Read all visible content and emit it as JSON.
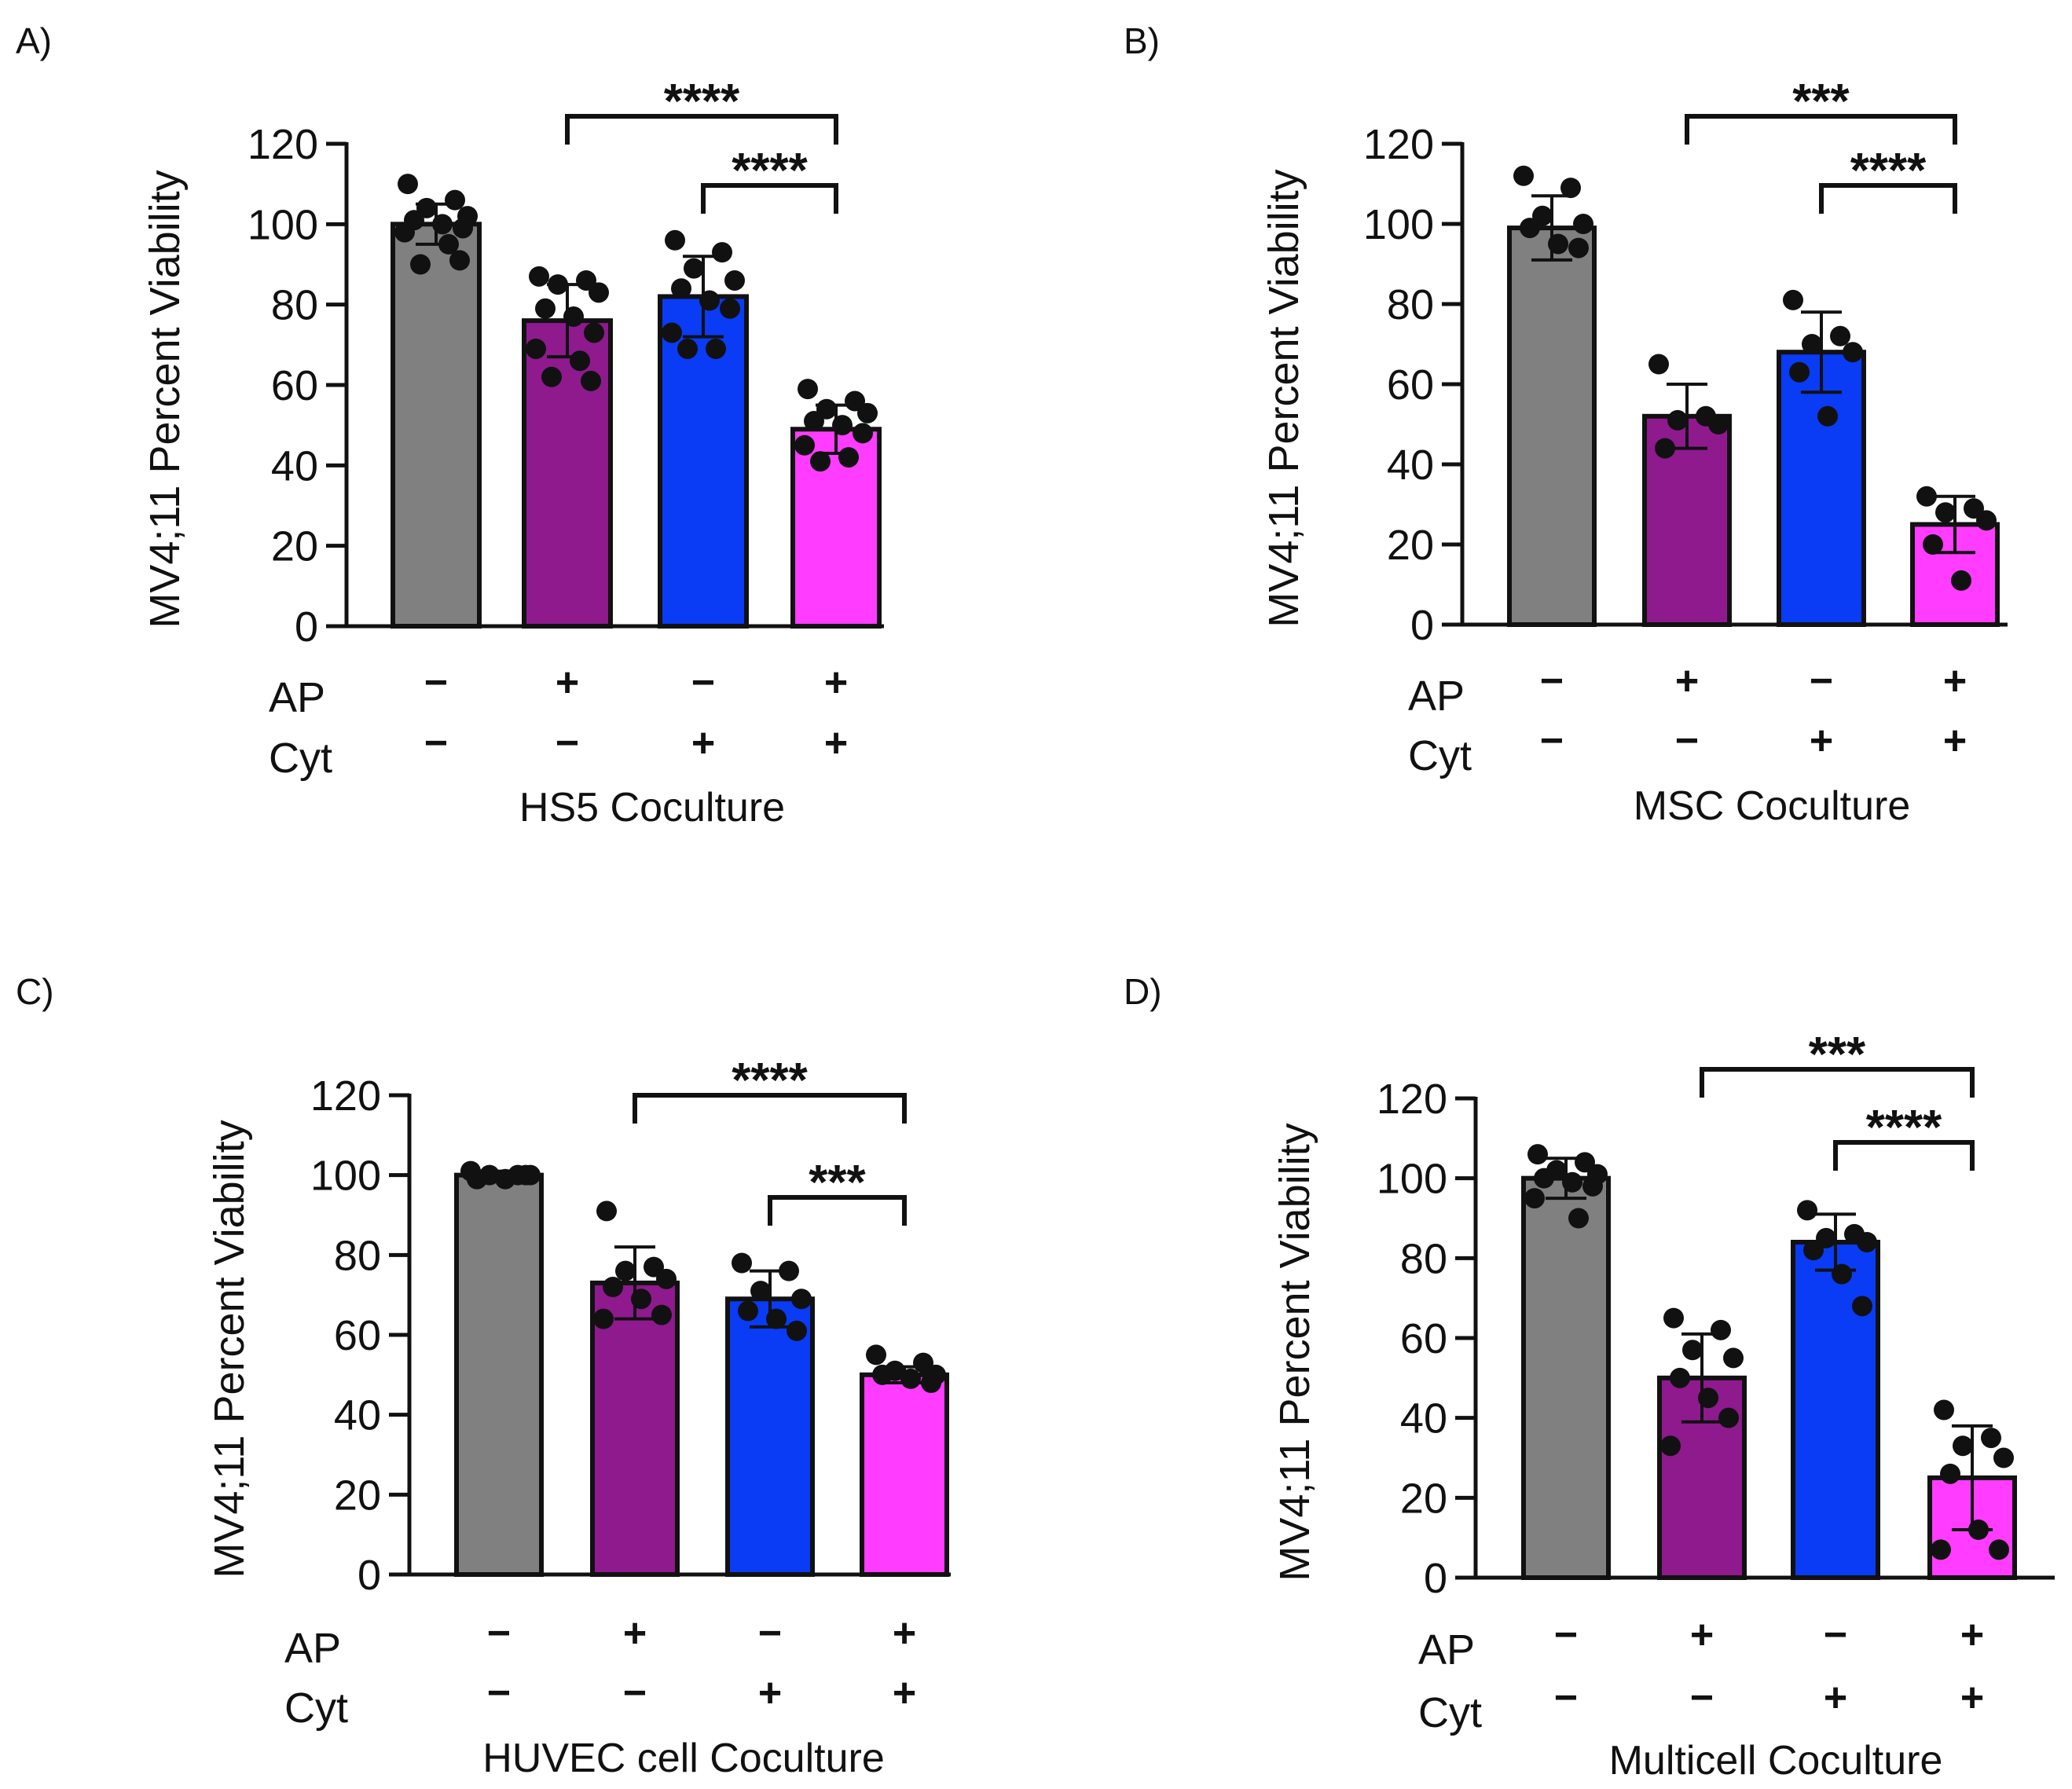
{
  "chart_data": [
    {
      "type": "bar",
      "panel": "A)",
      "xlabel": "HS5 Coculture",
      "ylabel": "MV4;11 Percent Viability",
      "ylim": [
        0,
        120
      ],
      "yticks": [
        "0",
        "20",
        "40",
        "60",
        "80",
        "100",
        "120"
      ],
      "row_labels": [
        "AP",
        "Cyt"
      ],
      "categories": [
        {
          "ap": "−",
          "cyt": "−",
          "color": "#808080",
          "value": 100,
          "sd": 5,
          "points": [
            110,
            106,
            104,
            102,
            101,
            100,
            99,
            98,
            95,
            90,
            91
          ]
        },
        {
          "ap": "+",
          "cyt": "−",
          "color": "#8e1a8e",
          "value": 76,
          "sd": 9,
          "points": [
            87,
            86,
            85,
            83,
            79,
            77,
            73,
            69,
            66,
            62,
            61
          ]
        },
        {
          "ap": "−",
          "cyt": "+",
          "color": "#0a3bf5",
          "value": 82,
          "sd": 10,
          "points": [
            96,
            93,
            89,
            86,
            84,
            81,
            79,
            73,
            69,
            69
          ]
        },
        {
          "ap": "+",
          "cyt": "+",
          "color": "#ff3cff",
          "value": 49,
          "sd": 6,
          "points": [
            59,
            56,
            54,
            53,
            51,
            50,
            48,
            45,
            42,
            41
          ]
        }
      ],
      "comparisons": [
        {
          "from": 1,
          "to": 3,
          "label": "****"
        },
        {
          "from": 2,
          "to": 3,
          "label": "****"
        }
      ]
    },
    {
      "type": "bar",
      "panel": "B)",
      "xlabel": "MSC Coculture",
      "ylabel": "MV4;11 Percent Viability",
      "ylim": [
        0,
        120
      ],
      "yticks": [
        "0",
        "20",
        "40",
        "60",
        "80",
        "100",
        "120"
      ],
      "row_labels": [
        "AP",
        "Cyt"
      ],
      "categories": [
        {
          "ap": "−",
          "cyt": "−",
          "color": "#808080",
          "value": 99,
          "sd": 8,
          "points": [
            112,
            109,
            102,
            100,
            99,
            95,
            94
          ]
        },
        {
          "ap": "+",
          "cyt": "−",
          "color": "#8e1a8e",
          "value": 52,
          "sd": 8,
          "points": [
            65,
            52,
            51,
            50,
            44
          ]
        },
        {
          "ap": "−",
          "cyt": "+",
          "color": "#0a3bf5",
          "value": 68,
          "sd": 10,
          "points": [
            81,
            72,
            70,
            68,
            63,
            52
          ]
        },
        {
          "ap": "+",
          "cyt": "+",
          "color": "#ff3cff",
          "value": 25,
          "sd": 7,
          "points": [
            32,
            29,
            28,
            26,
            20,
            11
          ]
        }
      ],
      "comparisons": [
        {
          "from": 1,
          "to": 3,
          "label": "***"
        },
        {
          "from": 2,
          "to": 3,
          "label": "****"
        }
      ]
    },
    {
      "type": "bar",
      "panel": "C)",
      "xlabel": "HUVEC cell Coculture",
      "ylabel": "MV4;11 Percent Viability",
      "ylim": [
        0,
        120
      ],
      "yticks": [
        "0",
        "20",
        "40",
        "60",
        "80",
        "100",
        "120"
      ],
      "row_labels": [
        "AP",
        "Cyt"
      ],
      "categories": [
        {
          "ap": "−",
          "cyt": "−",
          "color": "#808080",
          "value": 100,
          "sd": 1,
          "points": [
            101,
            100,
            100,
            100,
            99,
            99,
            100
          ]
        },
        {
          "ap": "+",
          "cyt": "−",
          "color": "#8e1a8e",
          "value": 73,
          "sd": 9,
          "points": [
            91,
            77,
            76,
            74,
            72,
            69,
            65,
            64
          ]
        },
        {
          "ap": "−",
          "cyt": "+",
          "color": "#0a3bf5",
          "value": 69,
          "sd": 7,
          "points": [
            78,
            76,
            71,
            69,
            66,
            64,
            61
          ]
        },
        {
          "ap": "+",
          "cyt": "+",
          "color": "#ff3cff",
          "value": 50,
          "sd": 2,
          "points": [
            55,
            53,
            51,
            50,
            50,
            49,
            48
          ]
        }
      ],
      "comparisons": [
        {
          "from": 1,
          "to": 3,
          "label": "****"
        },
        {
          "from": 2,
          "to": 3,
          "label": "***"
        }
      ]
    },
    {
      "type": "bar",
      "panel": "D)",
      "xlabel": "Multicell Coculture",
      "ylabel": "MV4;11 Percent Viability",
      "ylim": [
        0,
        120
      ],
      "yticks": [
        "0",
        "20",
        "40",
        "60",
        "80",
        "100",
        "120"
      ],
      "row_labels": [
        "AP",
        "Cyt"
      ],
      "categories": [
        {
          "ap": "−",
          "cyt": "−",
          "color": "#808080",
          "value": 100,
          "sd": 5,
          "points": [
            106,
            104,
            102,
            101,
            100,
            99,
            98,
            95,
            90
          ]
        },
        {
          "ap": "+",
          "cyt": "−",
          "color": "#8e1a8e",
          "value": 50,
          "sd": 11,
          "points": [
            65,
            62,
            57,
            55,
            50,
            45,
            40,
            33
          ]
        },
        {
          "ap": "−",
          "cyt": "+",
          "color": "#0a3bf5",
          "value": 84,
          "sd": 7,
          "points": [
            92,
            86,
            85,
            84,
            82,
            76,
            68
          ]
        },
        {
          "ap": "+",
          "cyt": "+",
          "color": "#ff3cff",
          "value": 25,
          "sd": 13,
          "points": [
            42,
            35,
            33,
            30,
            26,
            12,
            7,
            7
          ]
        }
      ],
      "comparisons": [
        {
          "from": 1,
          "to": 3,
          "label": "***"
        },
        {
          "from": 2,
          "to": 3,
          "label": "****"
        }
      ]
    }
  ]
}
